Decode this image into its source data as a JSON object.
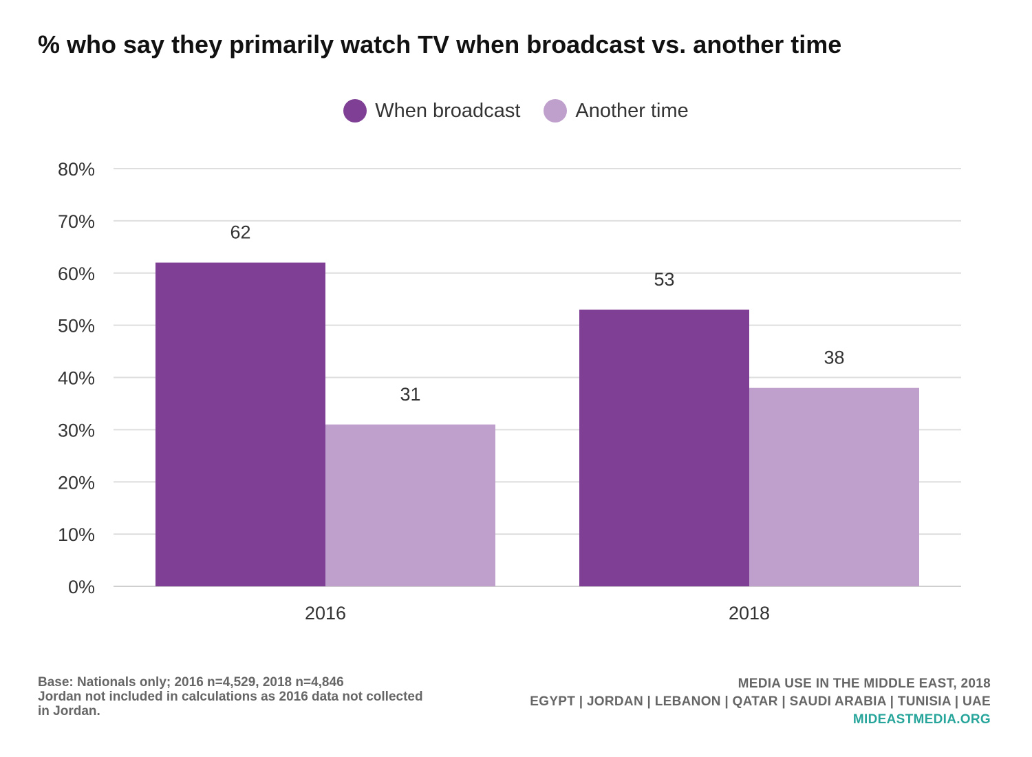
{
  "chart_data": {
    "type": "bar",
    "title": "% who say they primarily watch TV when broadcast vs. another time",
    "categories": [
      "2016",
      "2018"
    ],
    "series": [
      {
        "name": "When broadcast",
        "values": [
          62,
          53
        ],
        "color": "#7f3f95"
      },
      {
        "name": "Another time",
        "values": [
          31,
          38
        ],
        "color": "#bf9fcc"
      }
    ],
    "yticks": [
      "0%",
      "10%",
      "20%",
      "30%",
      "40%",
      "50%",
      "60%",
      "70%",
      "80%"
    ],
    "ylim": [
      0,
      80
    ],
    "grid": true,
    "legend": "top-center",
    "xlabel": "",
    "ylabel": ""
  },
  "footer": {
    "base_line1": "Base: Nationals only; 2016 n=4,529, 2018 n=4,846",
    "base_line2": "Jordan not included in calculations as 2016 data not collected in Jordan.",
    "source_line1": "MEDIA USE IN THE MIDDLE EAST, 2018",
    "source_line2": "EGYPT | JORDAN | LEBANON | QATAR | SAUDI ARABIA | TUNISIA | UAE",
    "site": "MIDEASTMEDIA.ORG",
    "site_color": "#27a59b"
  }
}
